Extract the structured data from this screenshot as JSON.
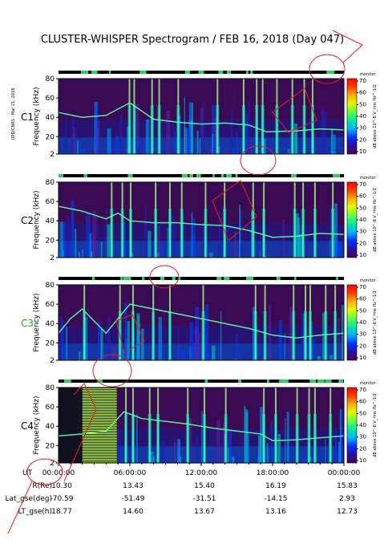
{
  "chart_data": {
    "type": "heatmap",
    "title": "CLUSTER-WHISPER Spectrogram / FEB 16, 2018 (Day 047)",
    "side_label": "UPD/CNRS - Mar 21, 2018",
    "ylabel": "Frequency (kHz)",
    "yticks": [
      "2",
      "20",
      "40",
      "60",
      "80"
    ],
    "ylim": [
      2,
      80
    ],
    "xticks": [
      "00:00:00",
      "06:00:00",
      "12:00:00",
      "18:00:00",
      "00:00:00"
    ],
    "xlim_hours": [
      0,
      24
    ],
    "colorbar": {
      "label": "dB above 10^-8 V_rms Hz^-1/2",
      "mode_label": "monitor",
      "ticks": [
        "10",
        "20",
        "30",
        "40",
        "50",
        "60",
        "70"
      ],
      "range": [
        10,
        70
      ],
      "colors": [
        "#4a0055",
        "#2a10a0",
        "#0030ff",
        "#00b0ff",
        "#00e8a0",
        "#60ff40",
        "#e0ff00",
        "#ffb000",
        "#ff4000",
        "#ff0000"
      ]
    },
    "panels": [
      {
        "name": "C1",
        "name_color": "#000000",
        "bright_lines_hours": [
          5.9,
          6.3,
          7.8,
          8.4,
          10.0,
          13.3,
          15.5,
          16.6,
          17.1,
          18.3,
          19.6,
          20.6,
          21.3
        ],
        "trace_khz": [
          [
            0,
            45
          ],
          [
            2,
            40
          ],
          [
            4,
            42
          ],
          [
            6,
            55
          ],
          [
            8,
            38
          ],
          [
            10,
            35
          ],
          [
            12,
            33
          ],
          [
            14,
            34
          ],
          [
            16,
            32
          ],
          [
            17.5,
            25
          ],
          [
            20,
            26
          ],
          [
            22,
            28
          ],
          [
            24,
            27
          ]
        ]
      },
      {
        "name": "C2",
        "name_color": "#000000",
        "bright_lines_hours": [
          4.4,
          5.3,
          6.0,
          8.1,
          9.3,
          10.3,
          12.3,
          13.9,
          16.3,
          17.2,
          19.8,
          20.5,
          21.5,
          23.0
        ],
        "trace_khz": [
          [
            0,
            55
          ],
          [
            2,
            50
          ],
          [
            4,
            42
          ],
          [
            5,
            48
          ],
          [
            6,
            40
          ],
          [
            8,
            38
          ],
          [
            10,
            38
          ],
          [
            12,
            36
          ],
          [
            14,
            35
          ],
          [
            16,
            30
          ],
          [
            18,
            23
          ],
          [
            20,
            24
          ],
          [
            22,
            27
          ],
          [
            24,
            26
          ]
        ]
      },
      {
        "name": "C3",
        "name_color": "#22aa22",
        "bright_lines_hours": [
          2.1,
          5.1,
          6.2,
          7.9,
          9.3,
          12.1,
          16.5,
          17.3,
          19.7,
          20.7,
          21.1,
          22.4,
          23.2
        ],
        "trace_khz": [
          [
            0,
            30
          ],
          [
            1,
            45
          ],
          [
            2,
            55
          ],
          [
            4,
            30
          ],
          [
            6,
            60
          ],
          [
            8,
            55
          ],
          [
            10,
            50
          ],
          [
            12,
            45
          ],
          [
            14,
            40
          ],
          [
            16,
            35
          ],
          [
            18,
            28
          ],
          [
            20,
            25
          ],
          [
            22,
            28
          ],
          [
            24,
            30
          ]
        ]
      },
      {
        "name": "C4",
        "name_color": "#000000",
        "bright_lines_hours": [
          5.6,
          6.2,
          7.6,
          8.3,
          10.8,
          12.2,
          14.0,
          17.2,
          18.2,
          20.0,
          21.0,
          21.5,
          22.8
        ],
        "trace_khz": [
          [
            0,
            30
          ],
          [
            2,
            32
          ],
          [
            4,
            35
          ],
          [
            5.5,
            55
          ],
          [
            7,
            48
          ],
          [
            9,
            45
          ],
          [
            11,
            42
          ],
          [
            13,
            38
          ],
          [
            15,
            35
          ],
          [
            17,
            32
          ],
          [
            18,
            25
          ],
          [
            20,
            26
          ],
          [
            22,
            28
          ],
          [
            24,
            30
          ]
        ],
        "striped_block_hours": [
          2.0,
          4.9
        ]
      }
    ],
    "ephemeris": {
      "header": "UT",
      "rows": [
        {
          "label": "R(Re)",
          "values": [
            "10.30",
            "13.43",
            "15.40",
            "16.19",
            "15.83"
          ]
        },
        {
          "label": "Lat_gse(deg)",
          "values": [
            "-70.59",
            "-51.49",
            "-31.51",
            "-14.15",
            "2.93"
          ]
        },
        {
          "label": "LT_gse(h)",
          "values": [
            "18.77",
            "14.60",
            "13.67",
            "13.16",
            "12.73"
          ]
        }
      ]
    }
  }
}
